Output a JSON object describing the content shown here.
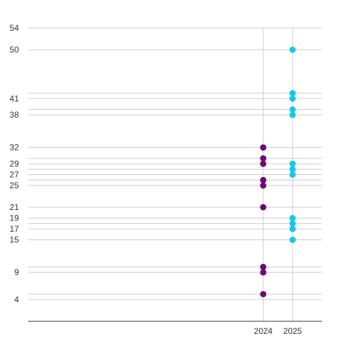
{
  "chart_data": {
    "type": "scatter",
    "x_categories": [
      "2024",
      "2025"
    ],
    "y_ticks": [
      4,
      9,
      15,
      17,
      19,
      21,
      25,
      27,
      29,
      32,
      38,
      41,
      50,
      54
    ],
    "ylim": [
      0,
      54
    ],
    "grid": true,
    "series": [
      {
        "color": "#6f0a73",
        "points": [
          {
            "x": "2024",
            "y": 5
          },
          {
            "x": "2024",
            "y": 9
          },
          {
            "x": "2024",
            "y": 10
          },
          {
            "x": "2024",
            "y": 21
          },
          {
            "x": "2024",
            "y": 25
          },
          {
            "x": "2024",
            "y": 26
          },
          {
            "x": "2024",
            "y": 29
          },
          {
            "x": "2024",
            "y": 30
          },
          {
            "x": "2024",
            "y": 32
          }
        ]
      },
      {
        "color": "#14c8ec",
        "points": [
          {
            "x": "2025",
            "y": 15
          },
          {
            "x": "2025",
            "y": 17
          },
          {
            "x": "2025",
            "y": 18
          },
          {
            "x": "2025",
            "y": 19
          },
          {
            "x": "2025",
            "y": 27
          },
          {
            "x": "2025",
            "y": 28
          },
          {
            "x": "2025",
            "y": 29
          },
          {
            "x": "2025",
            "y": 38
          },
          {
            "x": "2025",
            "y": 39
          },
          {
            "x": "2025",
            "y": 41
          },
          {
            "x": "2025",
            "y": 42
          },
          {
            "x": "2025",
            "y": 50
          }
        ]
      }
    ]
  }
}
